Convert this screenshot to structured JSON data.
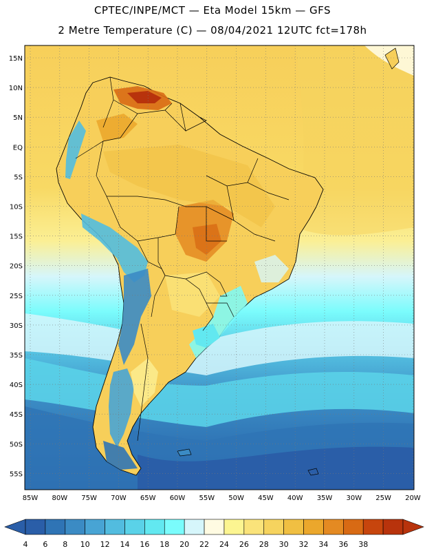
{
  "title_line1": "CPTEC/INPE/MCT —  Eta Model 15km — GFS",
  "title_line2": "2 Metre Temperature (C) — 08/04/2021 12UTC fct=178h",
  "lat_labels": [
    "15N",
    "10N",
    "5N",
    "EQ",
    "5S",
    "10S",
    "15S",
    "20S",
    "25S",
    "30S",
    "35S",
    "40S",
    "45S",
    "50S",
    "55S"
  ],
  "lon_labels": [
    "85W",
    "80W",
    "75W",
    "70W",
    "65W",
    "60W",
    "55W",
    "50W",
    "45W",
    "40W",
    "35W",
    "30W",
    "25W",
    "20W"
  ],
  "colorbar": {
    "labels": [
      "4",
      "6",
      "8",
      "10",
      "12",
      "14",
      "16",
      "18",
      "20",
      "22",
      "24",
      "26",
      "28",
      "30",
      "32",
      "34",
      "36",
      "38"
    ],
    "colors": [
      "#2a5ea8",
      "#2f74b5",
      "#3b8bc4",
      "#48a4d4",
      "#52bcdf",
      "#5ad2e8",
      "#62e8f0",
      "#7afcfc",
      "#d6f6fb",
      "#fffbe2",
      "#fcf591",
      "#fae37a",
      "#f6d35e",
      "#f0bf42",
      "#eba72c",
      "#e48a22",
      "#d86a14",
      "#c7450d",
      "#b8330c"
    ],
    "below_color": "#2a5ea8",
    "above_color": "#b8330c"
  }
}
